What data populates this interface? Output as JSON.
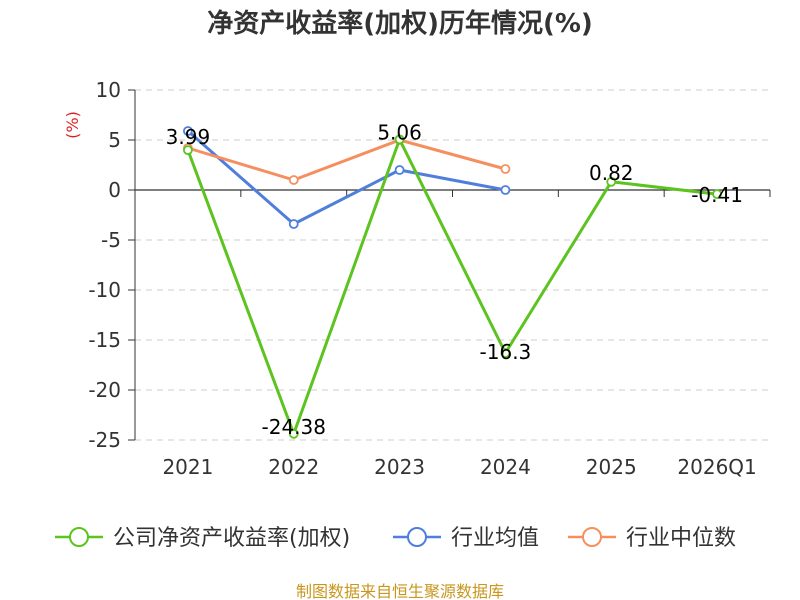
{
  "chart_data": {
    "type": "line",
    "title": "净资产收益率(加权)历年情况(%)",
    "ylabel": "(%)",
    "categories": [
      "2021",
      "2022",
      "2023",
      "2024",
      "2025",
      "2026Q1"
    ],
    "ylim": [
      -25,
      10
    ],
    "yticks": [
      "10",
      "5",
      "0",
      "-5",
      "-10",
      "-15",
      "-20",
      "-25"
    ],
    "grid": true,
    "legend_position": "bottom",
    "series": [
      {
        "name": "公司净资产收益率(加权)",
        "color": "#5cc31f",
        "values": [
          3.99,
          -24.38,
          5.06,
          -16.3,
          0.82,
          -0.41
        ],
        "labels": [
          "3.99",
          "-24.38",
          "5.06",
          "-16.3",
          "0.82",
          "-0.41"
        ]
      },
      {
        "name": "行业均值",
        "color": "#4f7fdb",
        "values": [
          5.9,
          -3.4,
          2.0,
          0.0,
          null,
          null
        ]
      },
      {
        "name": "行业中位数",
        "color": "#f68f5f",
        "values": [
          4.2,
          1.0,
          5.0,
          2.1,
          null,
          null
        ]
      }
    ],
    "source": "制图数据来自恒生聚源数据库"
  }
}
